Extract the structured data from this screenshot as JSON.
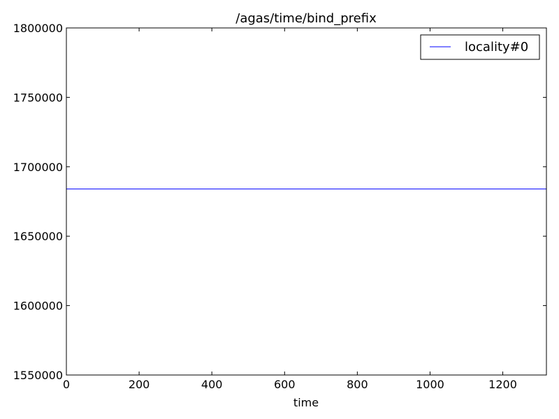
{
  "chart_data": {
    "type": "line",
    "title": "/agas/time/bind_prefix",
    "xlabel": "time",
    "ylabel": "",
    "xlim": [
      0,
      1320
    ],
    "ylim": [
      1550000,
      1800000
    ],
    "x_ticks": [
      "0",
      "200",
      "400",
      "600",
      "800",
      "1000",
      "1200"
    ],
    "y_ticks": [
      "1550000",
      "1600000",
      "1650000",
      "1700000",
      "1750000",
      "1800000"
    ],
    "series": [
      {
        "name": "locality#0",
        "color": "#0000ff",
        "x": [
          0,
          1320
        ],
        "y": [
          1684000,
          1684000
        ]
      }
    ],
    "grid": false,
    "legend": "top-right"
  }
}
